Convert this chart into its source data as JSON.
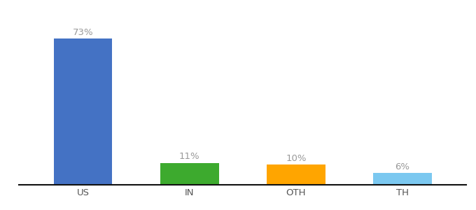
{
  "categories": [
    "US",
    "IN",
    "OTH",
    "TH"
  ],
  "values": [
    73,
    11,
    10,
    6
  ],
  "bar_colors": [
    "#4472C4",
    "#3DAA2E",
    "#FFA500",
    "#7BC8F0"
  ],
  "labels": [
    "73%",
    "11%",
    "10%",
    "6%"
  ],
  "ylim": [
    0,
    85
  ],
  "background_color": "#ffffff",
  "label_fontsize": 9.5,
  "tick_fontsize": 9.5,
  "label_color": "#999999",
  "tick_color": "#555555",
  "bar_width": 0.55,
  "spine_color": "#111111",
  "fig_width": 6.8,
  "fig_height": 3.0,
  "dpi": 100
}
